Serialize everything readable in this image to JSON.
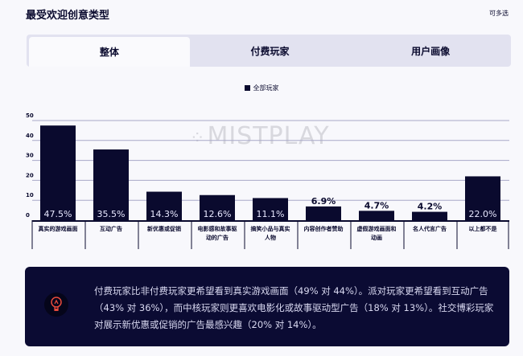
{
  "header": {
    "title": "最受欢迎创意类型",
    "note": "可多选"
  },
  "tabs": [
    {
      "label": "整体",
      "active": true
    },
    {
      "label": "付费玩家"
    },
    {
      "label": "用户画像"
    }
  ],
  "watermark": "MISTPLAY",
  "chart_data": {
    "type": "bar",
    "legend": [
      "全部玩家"
    ],
    "ylim": [
      0,
      50
    ],
    "yticks": [
      0,
      10,
      20,
      30,
      40,
      50
    ],
    "grid": true,
    "categories": [
      "真实的游戏画面",
      "互动广告",
      "新优惠或促销",
      "电影感和故事驱动的广告",
      "搞笑小品与真实人物",
      "内容创作者赞助",
      "虚假游戏画面和动画",
      "名人代言广告",
      "以上都不是"
    ],
    "series": [
      {
        "name": "全部玩家",
        "values": [
          47.5,
          35.5,
          14.3,
          12.6,
          11.1,
          6.9,
          4.7,
          4.2,
          22.0
        ]
      }
    ],
    "labels": [
      "47.5%",
      "35.5%",
      "14.3%",
      "12.6%",
      "11.1%",
      "6.9%",
      "4.7%",
      "4.2%",
      "22.0%"
    ],
    "bar_color": "#0a0a2e"
  },
  "callout": {
    "icon": "lightbulb-icon",
    "text": "付费玩家比非付费玩家更希望看到真实游戏画面（49% 对 44%）。派对玩家更希望看到互动广告（43% 对 36%），而中核玩家则更喜欢电影化或故事驱动型广告（18% 对 13%）。社交博彩玩家对展示新优惠或促销的广告最感兴趣（20% 对 14%）。"
  }
}
